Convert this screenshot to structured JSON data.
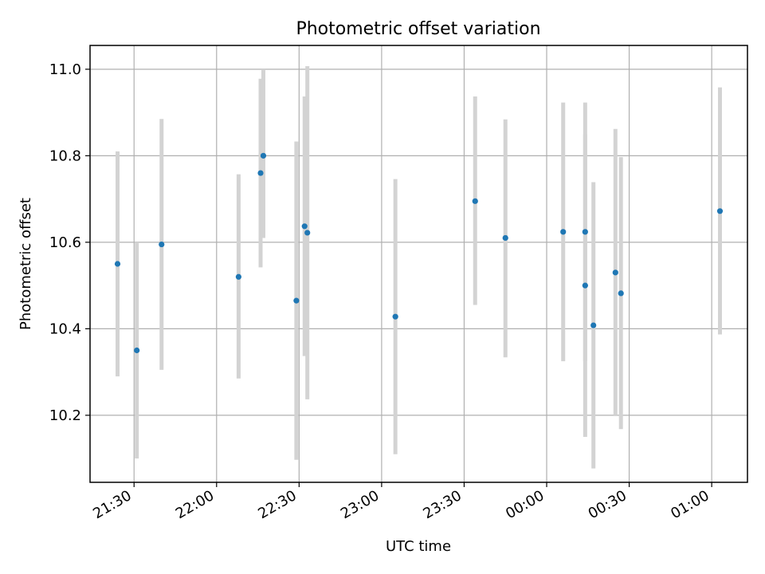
{
  "chart_data": {
    "type": "scatter",
    "title": "Photometric offset variation",
    "xlabel": "UTC time",
    "ylabel": "Photometric offset",
    "x_unit": "UTC time (HH:MM), times after midnight continue on the next day",
    "xlim": [
      "21:14",
      "01:13"
    ],
    "ylim": [
      10.045,
      11.055
    ],
    "grid": true,
    "x_ticks": [
      "21:30",
      "22:00",
      "22:30",
      "23:00",
      "23:30",
      "00:00",
      "00:30",
      "01:00"
    ],
    "y_ticks": [
      "10.2",
      "10.4",
      "10.6",
      "10.8",
      "11.0"
    ],
    "series": [
      {
        "color": "#1f77b4",
        "errorbar_color": "#d3d3d3",
        "points": [
          {
            "x": "21:24",
            "y": 10.55,
            "ylow": 10.29,
            "yhigh": 10.81
          },
          {
            "x": "21:31",
            "y": 10.35,
            "ylow": 10.1,
            "yhigh": 10.6
          },
          {
            "x": "21:40",
            "y": 10.595,
            "ylow": 10.305,
            "yhigh": 10.885
          },
          {
            "x": "22:08",
            "y": 10.52,
            "ylow": 10.285,
            "yhigh": 10.757
          },
          {
            "x": "22:16",
            "y": 10.76,
            "ylow": 10.542,
            "yhigh": 10.978
          },
          {
            "x": "22:17",
            "y": 10.8,
            "ylow": 10.61,
            "yhigh": 11.0
          },
          {
            "x": "22:29",
            "y": 10.465,
            "ylow": 10.097,
            "yhigh": 10.833
          },
          {
            "x": "22:32",
            "y": 10.637,
            "ylow": 10.337,
            "yhigh": 10.937
          },
          {
            "x": "22:33",
            "y": 10.622,
            "ylow": 10.237,
            "yhigh": 11.007
          },
          {
            "x": "23:05",
            "y": 10.428,
            "ylow": 10.11,
            "yhigh": 10.746
          },
          {
            "x": "23:34",
            "y": 10.695,
            "ylow": 10.455,
            "yhigh": 10.937
          },
          {
            "x": "23:45",
            "y": 10.61,
            "ylow": 10.334,
            "yhigh": 10.884
          },
          {
            "x": "00:06",
            "y": 10.624,
            "ylow": 10.325,
            "yhigh": 10.923
          },
          {
            "x": "00:14",
            "y": 10.624,
            "ylow": 10.325,
            "yhigh": 10.923
          },
          {
            "x": "00:14",
            "y": 10.5,
            "ylow": 10.15,
            "yhigh": 10.85
          },
          {
            "x": "00:17",
            "y": 10.408,
            "ylow": 10.077,
            "yhigh": 10.739
          },
          {
            "x": "00:25",
            "y": 10.53,
            "ylow": 10.2,
            "yhigh": 10.862
          },
          {
            "x": "00:27",
            "y": 10.482,
            "ylow": 10.168,
            "yhigh": 10.797
          },
          {
            "x": "01:03",
            "y": 10.672,
            "ylow": 10.387,
            "yhigh": 10.958
          }
        ]
      }
    ]
  }
}
